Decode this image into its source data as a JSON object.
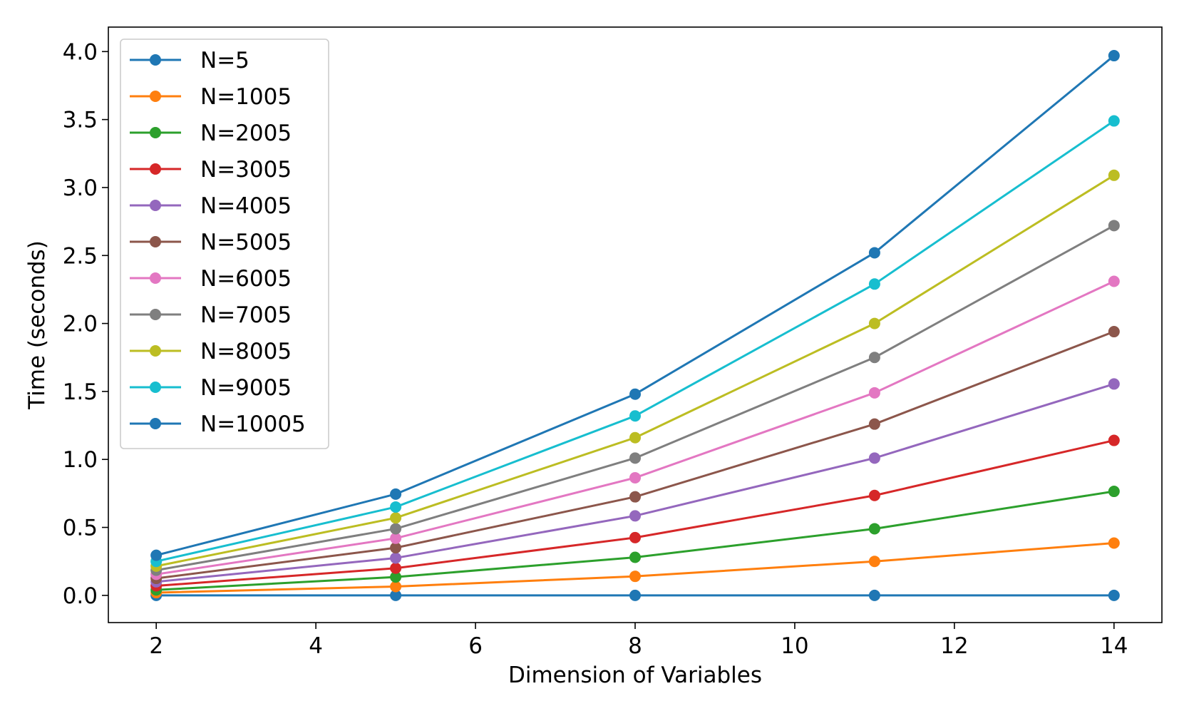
{
  "chart_data": {
    "type": "line",
    "title": "",
    "xlabel": "Dimension of Variables",
    "ylabel": "Time (seconds)",
    "xlim": [
      1.4,
      14.6
    ],
    "ylim": [
      -0.2,
      4.18
    ],
    "xticks": [
      2,
      4,
      6,
      8,
      10,
      12,
      14
    ],
    "xtick_labels": [
      "2",
      "4",
      "6",
      "8",
      "10",
      "12",
      "14"
    ],
    "yticks": [
      0.0,
      0.5,
      1.0,
      1.5,
      2.0,
      2.5,
      3.0,
      3.5,
      4.0
    ],
    "ytick_labels": [
      "0.0",
      "0.5",
      "1.0",
      "1.5",
      "2.0",
      "2.5",
      "3.0",
      "3.5",
      "4.0"
    ],
    "grid": false,
    "legend_position": "top-left",
    "x": [
      2,
      5,
      8,
      11,
      14
    ],
    "series": [
      {
        "name": "N=5",
        "color": "#1f77b4",
        "values": [
          0.0,
          0.0,
          0.0,
          0.0,
          0.0
        ]
      },
      {
        "name": "N=1005",
        "color": "#ff7f0e",
        "values": [
          0.02,
          0.065,
          0.14,
          0.25,
          0.385
        ]
      },
      {
        "name": "N=2005",
        "color": "#2ca02c",
        "values": [
          0.04,
          0.135,
          0.28,
          0.49,
          0.765
        ]
      },
      {
        "name": "N=3005",
        "color": "#d62728",
        "values": [
          0.07,
          0.2,
          0.425,
          0.735,
          1.14
        ]
      },
      {
        "name": "N=4005",
        "color": "#9467bd",
        "values": [
          0.1,
          0.275,
          0.585,
          1.01,
          1.555
        ]
      },
      {
        "name": "N=5005",
        "color": "#8c564b",
        "values": [
          0.125,
          0.35,
          0.725,
          1.26,
          1.94
        ]
      },
      {
        "name": "N=6005",
        "color": "#e377c2",
        "values": [
          0.155,
          0.42,
          0.865,
          1.49,
          2.31
        ]
      },
      {
        "name": "N=7005",
        "color": "#7f7f7f",
        "values": [
          0.185,
          0.49,
          1.01,
          1.75,
          2.72
        ]
      },
      {
        "name": "N=8005",
        "color": "#bcbd22",
        "values": [
          0.215,
          0.57,
          1.16,
          2.0,
          3.09
        ]
      },
      {
        "name": "N=9005",
        "color": "#17becf",
        "values": [
          0.25,
          0.65,
          1.32,
          2.29,
          3.49
        ]
      },
      {
        "name": "N=10005",
        "color": "#1f77b4",
        "values": [
          0.295,
          0.745,
          1.48,
          2.52,
          3.97
        ]
      }
    ]
  }
}
